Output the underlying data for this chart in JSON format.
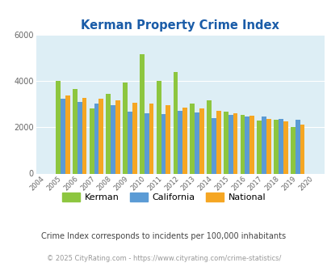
{
  "title": "Kerman Property Crime Index",
  "years": [
    2004,
    2005,
    2006,
    2007,
    2008,
    2009,
    2010,
    2011,
    2012,
    2013,
    2014,
    2015,
    2016,
    2017,
    2018,
    2019,
    2020
  ],
  "kerman": [
    null,
    4000,
    3650,
    2800,
    3450,
    3950,
    5150,
    4020,
    4400,
    3020,
    3150,
    2680,
    2550,
    2300,
    2320,
    2000,
    null
  ],
  "california": [
    null,
    3250,
    3100,
    3030,
    2950,
    2680,
    2600,
    2580,
    2700,
    2650,
    2380,
    2520,
    2480,
    2460,
    2370,
    2320,
    null
  ],
  "national": [
    null,
    3380,
    3270,
    3230,
    3150,
    3060,
    3020,
    2940,
    2840,
    2800,
    2700,
    2620,
    2490,
    2360,
    2270,
    2120,
    null
  ],
  "kerman_color": "#8dc63f",
  "california_color": "#5b9bd5",
  "national_color": "#f5a623",
  "plot_bg": "#ddeef5",
  "ylim": [
    0,
    6000
  ],
  "yticks": [
    0,
    2000,
    4000,
    6000
  ],
  "subtitle": "Crime Index corresponds to incidents per 100,000 inhabitants",
  "footer": "© 2025 CityRating.com - https://www.cityrating.com/crime-statistics/",
  "title_color": "#1a5ca8",
  "subtitle_color": "#444444",
  "footer_color": "#999999",
  "legend_labels": [
    "Kerman",
    "California",
    "National"
  ],
  "bar_width": 0.28
}
